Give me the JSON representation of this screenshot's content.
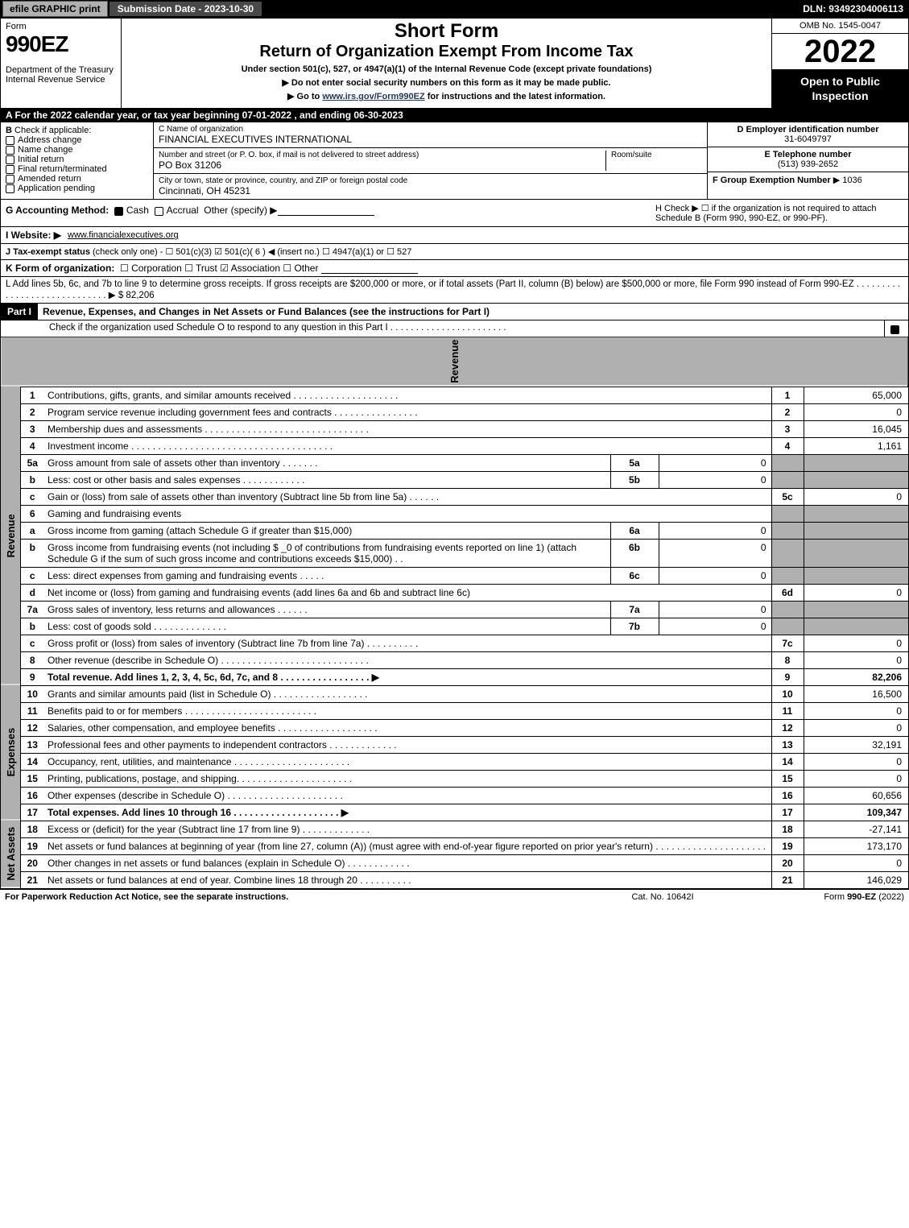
{
  "topbar": {
    "efile": "efile GRAPHIC print",
    "submission": "Submission Date - 2023-10-30",
    "dln": "DLN: 93492304006113"
  },
  "header": {
    "form_label": "Form",
    "form_number": "990EZ",
    "dept1": "Department of the Treasury",
    "dept2": "Internal Revenue Service",
    "short_form": "Short Form",
    "title": "Return of Organization Exempt From Income Tax",
    "sub1": "Under section 501(c), 527, or 4947(a)(1) of the Internal Revenue Code (except private foundations)",
    "sub2": "▶ Do not enter social security numbers on this form as it may be made public.",
    "sub3_pre": "▶ Go to ",
    "sub3_link": "www.irs.gov/Form990EZ",
    "sub3_post": " for instructions and the latest information.",
    "omb": "OMB No. 1545-0047",
    "year": "2022",
    "inspect": "Open to Public Inspection"
  },
  "section_a": "A  For the 2022 calendar year, or tax year beginning 07-01-2022  , and ending 06-30-2023",
  "section_b": {
    "label": "B",
    "check_label": "Check if applicable:",
    "items": [
      "Address change",
      "Name change",
      "Initial return",
      "Final return/terminated",
      "Amended return",
      "Application pending"
    ]
  },
  "section_c": {
    "name_label": "C Name of organization",
    "name": "FINANCIAL EXECUTIVES INTERNATIONAL",
    "street_label": "Number and street (or P. O. box, if mail is not delivered to street address)",
    "room_label": "Room/suite",
    "street": "PO Box 31206",
    "city_label": "City or town, state or province, country, and ZIP or foreign postal code",
    "city": "Cincinnati, OH  45231"
  },
  "section_d": {
    "ein_label": "D Employer identification number",
    "ein": "31-6049797",
    "phone_label": "E Telephone number",
    "phone": "(513) 939-2652",
    "group_label": "F Group Exemption Number",
    "group": "▶ 1036"
  },
  "g": {
    "label": "G Accounting Method:",
    "cash": "Cash",
    "accrual": "Accrual",
    "other": "Other (specify) ▶"
  },
  "h": {
    "text": "H  Check ▶  ☐  if the organization is not required to attach Schedule B (Form 990, 990-EZ, or 990-PF)."
  },
  "i": {
    "label": "I Website: ▶",
    "value": "www.financialexecutives.org"
  },
  "j": {
    "label": "J Tax-exempt status",
    "note": "(check only one) -",
    "opts": "☐ 501(c)(3)  ☑ 501(c)( 6 ) ◀ (insert no.)  ☐ 4947(a)(1) or  ☐ 527"
  },
  "k": {
    "label": "K Form of organization:",
    "opts": "☐ Corporation   ☐ Trust   ☑ Association   ☐ Other"
  },
  "l": {
    "text": "L Add lines 5b, 6c, and 7b to line 9 to determine gross receipts. If gross receipts are $200,000 or more, or if total assets (Part II, column (B) below) are $500,000 or more, file Form 990 instead of Form 990-EZ  .  .  .  .  .  .  .  .  .  .  .  .  .  .  .  .  .  .  .  .  .  .  .  .  .  .  .  .  .  ▶ $ 82,206"
  },
  "part1": {
    "label": "Part I",
    "title": "Revenue, Expenses, and Changes in Net Assets or Fund Balances (see the instructions for Part I)",
    "check_text": "Check if the organization used Schedule O to respond to any question in this Part I  .  .  .  .  .  .  .  .  .  .  .  .  .  .  .  .  .  .  .  .  .  .  ."
  },
  "revenue_label": "Revenue",
  "expenses_label": "Expenses",
  "netassets_label": "Net Assets",
  "rows": [
    {
      "n": "1",
      "desc": "Contributions, gifts, grants, and similar amounts received  .  .  .  .  .  .  .  .  .  .  .  .  .  .  .  .  .  .  .  .",
      "ln": "1",
      "amt": "65,000"
    },
    {
      "n": "2",
      "desc": "Program service revenue including government fees and contracts  .  .  .  .  .  .  .  .  .  .  .  .  .  .  .  .",
      "ln": "2",
      "amt": "0"
    },
    {
      "n": "3",
      "desc": "Membership dues and assessments  .  .  .  .  .  .  .  .  .  .  .  .  .  .  .  .  .  .  .  .  .  .  .  .  .  .  .  .  .  .  .",
      "ln": "3",
      "amt": "16,045"
    },
    {
      "n": "4",
      "desc": "Investment income  .  .  .  .  .  .  .  .  .  .  .  .  .  .  .  .  .  .  .  .  .  .  .  .  .  .  .  .  .  .  .  .  .  .  .  .  .  .",
      "ln": "4",
      "amt": "1,161"
    },
    {
      "n": "5a",
      "desc": "Gross amount from sale of assets other than inventory  .  .  .  .  .  .  .",
      "sub": "5a",
      "subv": "0",
      "grey": true
    },
    {
      "n": "b",
      "desc": "Less: cost or other basis and sales expenses  .  .  .  .  .  .  .  .  .  .  .  .",
      "sub": "5b",
      "subv": "0",
      "grey": true
    },
    {
      "n": "c",
      "desc": "Gain or (loss) from sale of assets other than inventory (Subtract line 5b from line 5a)  .  .  .  .  .  .",
      "ln": "5c",
      "amt": "0"
    },
    {
      "n": "6",
      "desc": "Gaming and fundraising events",
      "grey": true,
      "noborder": true
    },
    {
      "n": "a",
      "desc": "Gross income from gaming (attach Schedule G if greater than $15,000)",
      "sub": "6a",
      "subv": "0",
      "grey": true
    },
    {
      "n": "b",
      "desc": "Gross income from fundraising events (not including $ _0                 of contributions from fundraising events reported on line 1) (attach Schedule G if the sum of such gross income and contributions exceeds $15,000)     .   .",
      "sub": "6b",
      "subv": "0",
      "grey": true,
      "tall": true
    },
    {
      "n": "c",
      "desc": "Less: direct expenses from gaming and fundraising events  .  .  .  .  .",
      "sub": "6c",
      "subv": "0",
      "grey": true
    },
    {
      "n": "d",
      "desc": "Net income or (loss) from gaming and fundraising events (add lines 6a and 6b and subtract line 6c)",
      "ln": "6d",
      "amt": "0"
    },
    {
      "n": "7a",
      "desc": "Gross sales of inventory, less returns and allowances  .  .  .  .  .  .",
      "sub": "7a",
      "subv": "0",
      "grey": true
    },
    {
      "n": "b",
      "desc": "Less: cost of goods sold        .   .   .   .   .   .   .   .   .   .   .   .   .   .",
      "sub": "7b",
      "subv": "0",
      "grey": true
    },
    {
      "n": "c",
      "desc": "Gross profit or (loss) from sales of inventory (Subtract line 7b from line 7a)  .  .  .  .  .  .  .  .  .  .",
      "ln": "7c",
      "amt": "0"
    },
    {
      "n": "8",
      "desc": "Other revenue (describe in Schedule O)  .  .  .  .  .  .  .  .  .  .  .  .  .  .  .  .  .  .  .  .  .  .  .  .  .  .  .  .",
      "ln": "8",
      "amt": "0"
    },
    {
      "n": "9",
      "desc": "Total revenue. Add lines 1, 2, 3, 4, 5c, 6d, 7c, and 8   .   .   .   .   .   .   .   .   .   .   .   .   .   .   .   .   . ▶",
      "ln": "9",
      "amt": "82,206",
      "bold": true
    }
  ],
  "exp_rows": [
    {
      "n": "10",
      "desc": "Grants and similar amounts paid (list in Schedule O)  .   .   .   .   .   .   .   .   .   .   .   .   .   .   .   .   .   .",
      "ln": "10",
      "amt": "16,500"
    },
    {
      "n": "11",
      "desc": "Benefits paid to or for members     .   .   .   .   .   .   .   .   .   .   .   .   .   .   .   .   .   .   .   .   .   .   .   .   .",
      "ln": "11",
      "amt": "0"
    },
    {
      "n": "12",
      "desc": "Salaries, other compensation, and employee benefits .   .   .   .   .   .   .   .   .   .   .   .   .   .   .   .   .   .   .",
      "ln": "12",
      "amt": "0"
    },
    {
      "n": "13",
      "desc": "Professional fees and other payments to independent contractors  .   .   .   .   .   .   .   .   .   .   .   .   .",
      "ln": "13",
      "amt": "32,191"
    },
    {
      "n": "14",
      "desc": "Occupancy, rent, utilities, and maintenance .   .   .   .   .   .   .   .   .   .   .   .   .   .   .   .   .   .   .   .   .   .",
      "ln": "14",
      "amt": "0"
    },
    {
      "n": "15",
      "desc": "Printing, publications, postage, and shipping.   .   .   .   .   .   .   .   .   .   .   .   .   .   .   .   .   .   .   .   .   .",
      "ln": "15",
      "amt": "0"
    },
    {
      "n": "16",
      "desc": "Other expenses (describe in Schedule O)     .   .   .   .   .   .   .   .   .   .   .   .   .   .   .   .   .   .   .   .   .   .",
      "ln": "16",
      "amt": "60,656"
    },
    {
      "n": "17",
      "desc": "Total expenses. Add lines 10 through 16     .   .   .   .   .   .   .   .   .   .   .   .   .   .   .   .   .   .   .   .  ▶",
      "ln": "17",
      "amt": "109,347",
      "bold": true
    }
  ],
  "net_rows": [
    {
      "n": "18",
      "desc": "Excess or (deficit) for the year (Subtract line 17 from line 9)        .   .   .   .   .   .   .   .   .   .   .   .   .",
      "ln": "18",
      "amt": "-27,141"
    },
    {
      "n": "19",
      "desc": "Net assets or fund balances at beginning of year (from line 27, column (A)) (must agree with end-of-year figure reported on prior year's return) .   .   .   .   .   .   .   .   .   .   .   .   .   .   .   .   .   .   .   .  .",
      "ln": "19",
      "amt": "173,170",
      "tall": true
    },
    {
      "n": "20",
      "desc": "Other changes in net assets or fund balances (explain in Schedule O) .   .   .   .   .   .   .   .   .   .   .   .",
      "ln": "20",
      "amt": "0"
    },
    {
      "n": "21",
      "desc": "Net assets or fund balances at end of year. Combine lines 18 through 20  .   .   .   .   .   .   .   .   .   .",
      "ln": "21",
      "amt": "146,029"
    }
  ],
  "footer": {
    "left": "For Paperwork Reduction Act Notice, see the separate instructions.",
    "mid": "Cat. No. 10642I",
    "right_pre": "Form ",
    "right_bold": "990-EZ",
    "right_post": " (2022)"
  }
}
